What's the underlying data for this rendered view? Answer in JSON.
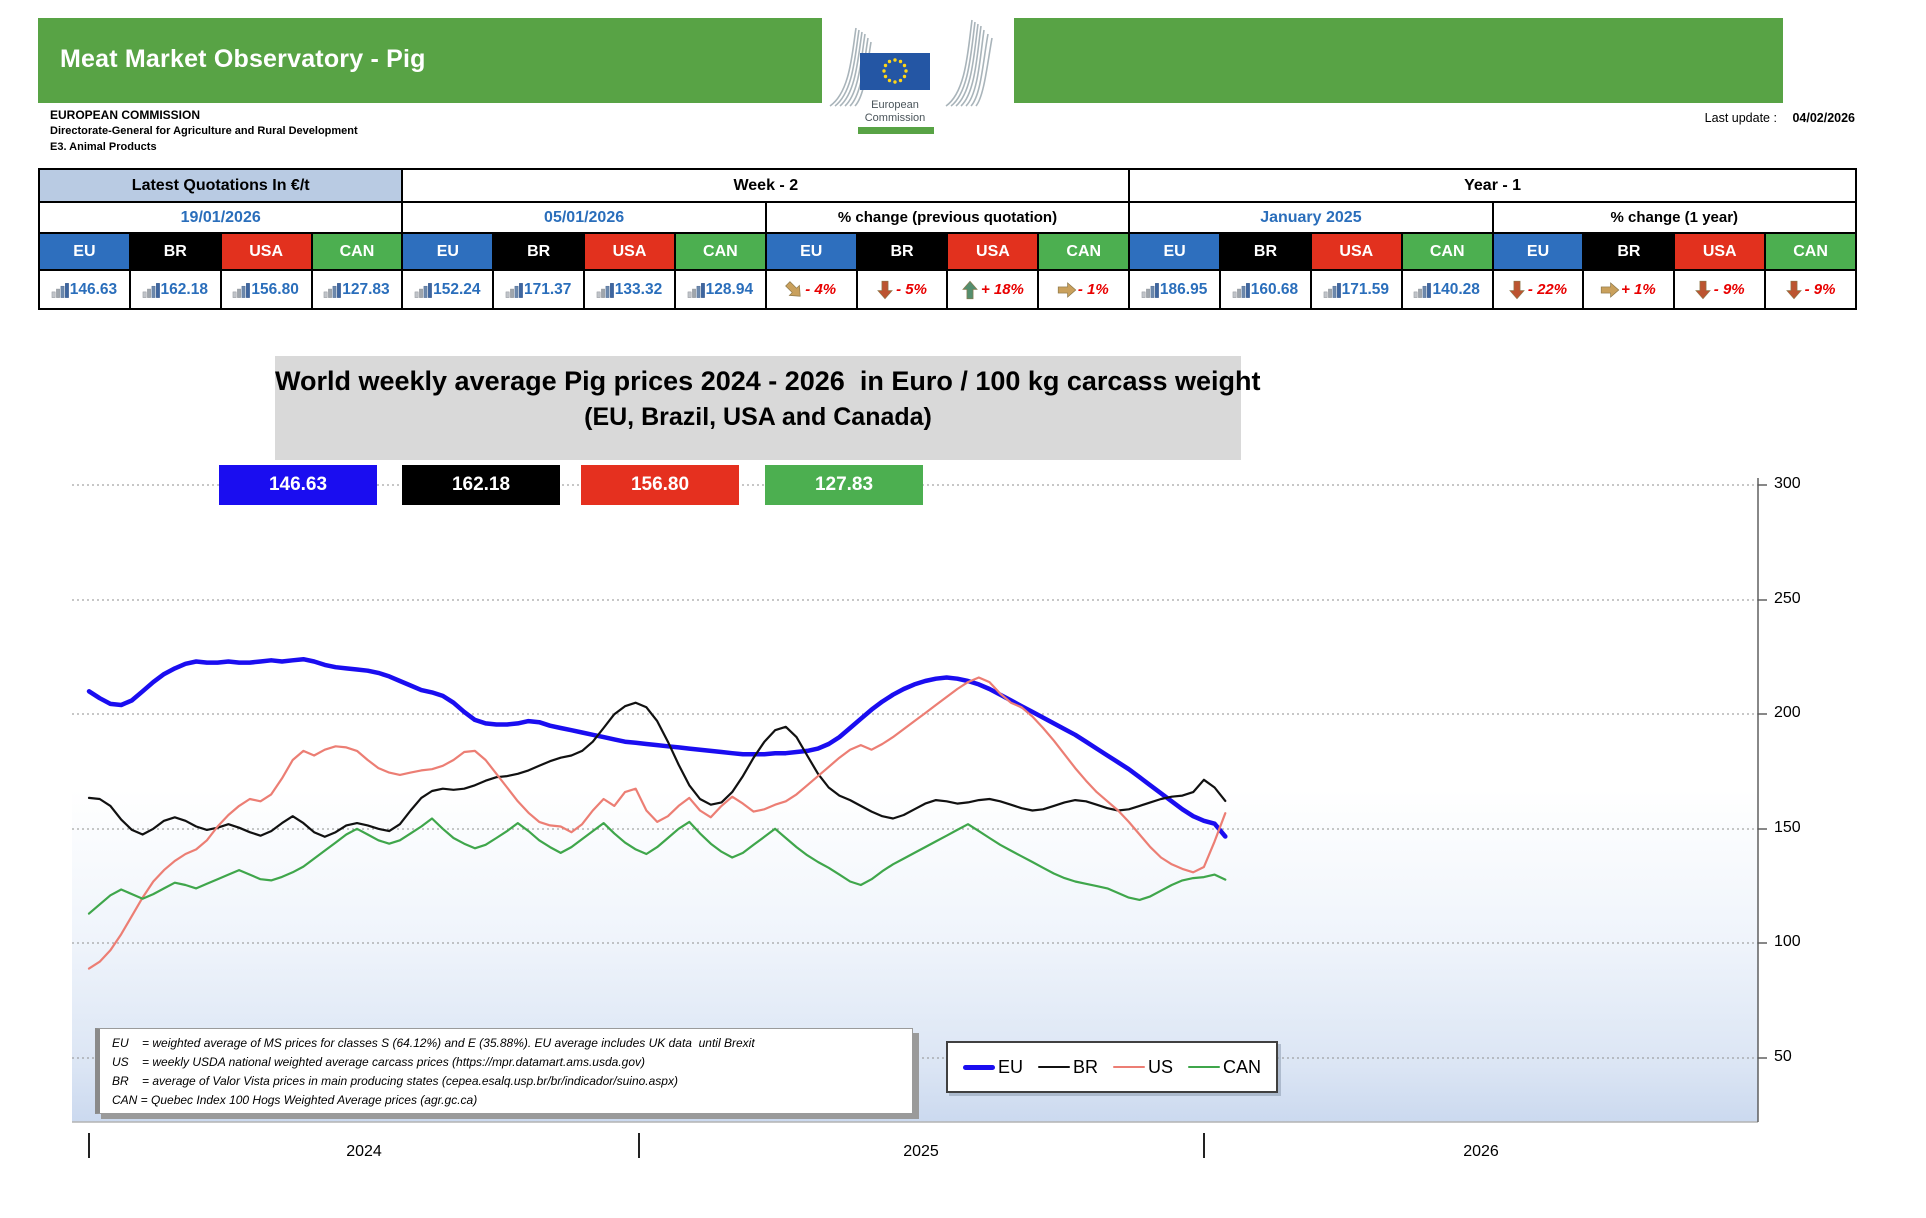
{
  "header": {
    "title": "Meat Market Observatory - Pig",
    "org_line1": "EUROPEAN COMMISSION",
    "org_line2": "Directorate-General for Agriculture and Rural Development",
    "org_line3": "E3. Animal Products",
    "last_update_label": "Last update :",
    "last_update_date": "04/02/2026",
    "logo_line1": "European",
    "logo_line2": "Commission"
  },
  "quotes_table": {
    "group1_label": "Latest Quotations In €/t",
    "group2_label": "Week - 2",
    "group3_label": "Year - 1",
    "date_latest": "19/01/2026",
    "date_week2": "05/01/2026",
    "pct_prev_label": "% change (previous quotation)",
    "date_year1": "January 2025",
    "pct_year_label": "% change (1 year)",
    "countries": [
      "EU",
      "BR",
      "USA",
      "CAN"
    ],
    "latest": [
      "146.63",
      "162.18",
      "156.80",
      "127.83"
    ],
    "week2": [
      "152.24",
      "171.37",
      "133.32",
      "128.94"
    ],
    "pct_prev": [
      {
        "arrow": "se",
        "value": "- 4%"
      },
      {
        "arrow": "down",
        "value": "- 5%"
      },
      {
        "arrow": "up",
        "value": "+ 18%"
      },
      {
        "arrow": "right",
        "value": "- 1%"
      }
    ],
    "year1": [
      "186.95",
      "160.68",
      "171.59",
      "140.28"
    ],
    "pct_year": [
      {
        "arrow": "down",
        "value": "- 22%"
      },
      {
        "arrow": "right",
        "value": "+ 1%"
      },
      {
        "arrow": "down",
        "value": "- 9%"
      },
      {
        "arrow": "down",
        "value": "- 9%"
      }
    ]
  },
  "chart": {
    "title_line1": "World weekly average Pig prices 2024 - 2026  in Euro / 100 kg carcass weight",
    "title_line2": "(EU, Brazil, USA and Canada)",
    "value_boxes": [
      {
        "value": "146.63",
        "color": "#1A0DF0"
      },
      {
        "value": "162.18",
        "color": "#000000"
      },
      {
        "value": "156.80",
        "color": "#E5301F"
      },
      {
        "value": "127.83",
        "color": "#4CAF50"
      }
    ],
    "footnotes": [
      "EU    = weighted average of MS prices for classes S (64.12%) and E (35.88%). EU average includes UK data  until Brexit",
      "US    = weekly USDA national weighted average carcass prices (https://mpr.datamart.ams.usda.gov)",
      "BR    = average of Valor Vista prices in main producing states (cepea.esalq.usp.br/br/indicador/suino.aspx)",
      "CAN = Quebec Index 100 Hogs Weighted Average prices (agr.gc.ca)"
    ]
  },
  "chart_data": {
    "type": "line",
    "title": "World weekly average Pig prices 2024 - 2026 in Euro / 100 kg carcass weight (EU, Brazil, USA and Canada)",
    "x_frequency": "weekly",
    "x_start": "2024-W01",
    "x_end": "2026-W03",
    "x_axis": {
      "tick_labels": [
        "2024",
        "2025",
        "2026"
      ]
    },
    "y_axis": {
      "ticks": [
        300,
        250,
        200,
        150,
        100,
        50
      ],
      "min": 50,
      "max": 300,
      "grid": "horizontal-dotted"
    },
    "legend": [
      "EU",
      "BR",
      "US",
      "CAN"
    ],
    "legend_position": "bottom",
    "series": [
      {
        "name": "EU",
        "color": "#1A0DF0",
        "width": 4.5,
        "values": [
          210,
          207,
          204.5,
          204,
          206,
          210,
          214,
          217.5,
          220,
          222,
          223,
          222.5,
          222.5,
          223,
          222.5,
          222.5,
          223,
          223.5,
          223,
          223.5,
          224,
          223,
          221.5,
          220.5,
          220,
          219.5,
          219,
          218,
          216.5,
          214.5,
          212.5,
          210.5,
          209.5,
          208,
          205,
          201,
          197.5,
          196,
          195.5,
          195.5,
          196,
          197,
          196.5,
          195,
          194,
          193,
          192,
          191,
          190,
          189,
          188,
          187.5,
          187,
          186.5,
          186,
          185.5,
          185,
          184.5,
          184,
          183.5,
          183,
          182.5,
          182.5,
          182.5,
          183,
          183,
          183.5,
          184,
          185,
          187,
          190,
          194,
          198,
          202,
          205.5,
          208.5,
          211,
          213,
          214.5,
          215.5,
          216,
          215.5,
          214.5,
          213,
          211,
          208.5,
          206,
          203.5,
          201,
          198.5,
          196,
          193.5,
          191,
          188,
          185,
          182,
          179,
          176,
          172.5,
          169,
          165.5,
          162,
          158.5,
          155.5,
          153.5,
          152.24,
          146.63
        ]
      },
      {
        "name": "BR",
        "color": "#111111",
        "width": 2.2,
        "values": [
          163.5,
          163,
          160,
          154,
          149.5,
          147.5,
          150,
          153.5,
          155,
          153.5,
          151,
          149.5,
          150.5,
          152,
          150.5,
          148.5,
          147,
          149,
          152.5,
          155.5,
          152.5,
          148.5,
          146.5,
          148.5,
          151.5,
          152.5,
          151.5,
          150,
          149,
          152,
          158,
          163.5,
          166.5,
          167.5,
          167,
          167.5,
          169,
          171,
          172.5,
          173,
          174,
          175.5,
          177.5,
          179.5,
          181,
          182,
          184,
          188,
          194,
          200,
          203.5,
          205,
          203,
          197,
          188,
          178,
          169,
          163,
          160.5,
          161.5,
          166,
          173,
          181,
          188,
          193,
          194.5,
          190,
          182,
          174,
          168,
          164.5,
          162.5,
          160,
          157.5,
          155.5,
          154.5,
          156,
          158.5,
          161,
          162.5,
          162,
          161,
          161.5,
          162.5,
          163,
          162,
          160.5,
          159,
          158,
          158.5,
          160,
          161.5,
          162.5,
          162,
          160.5,
          159,
          158,
          158.5,
          160,
          161.5,
          163,
          164,
          164.5,
          166,
          171.37,
          168,
          162.18
        ]
      },
      {
        "name": "US",
        "color": "#EC7E74",
        "width": 2.2,
        "values": [
          89,
          92,
          97,
          104,
          112,
          120,
          127,
          132,
          136,
          139,
          141,
          145,
          151,
          156,
          160,
          163,
          162,
          165,
          172,
          180,
          184,
          182,
          184.5,
          186,
          185.5,
          184,
          180,
          176.5,
          174.5,
          173.5,
          174.5,
          175.5,
          176,
          177.5,
          180,
          183.5,
          184,
          180,
          174,
          168,
          162,
          157,
          153,
          151.5,
          151,
          148.5,
          152,
          158,
          163,
          160,
          166,
          167.5,
          158,
          153,
          155.5,
          160,
          163.5,
          158,
          155,
          160,
          164,
          161,
          157.5,
          158.5,
          160.5,
          162,
          165,
          169,
          173,
          177,
          181,
          184.5,
          186.5,
          184.5,
          187,
          190,
          193.5,
          197,
          200.5,
          204,
          207.5,
          211,
          214,
          216,
          214,
          209,
          205,
          203,
          199,
          194,
          188.5,
          182.5,
          176.5,
          171,
          166,
          162,
          158,
          153,
          147.5,
          142,
          137.5,
          134.5,
          132.5,
          131,
          133.32,
          144.5,
          156.8
        ]
      },
      {
        "name": "CAN",
        "color": "#3FA64B",
        "width": 2.2,
        "values": [
          113,
          117,
          121,
          123.5,
          121.5,
          119.5,
          121.5,
          124,
          126.5,
          125.5,
          124,
          126,
          128,
          130,
          132,
          130,
          128,
          127.5,
          129,
          131,
          133.5,
          137,
          140.5,
          144,
          147.5,
          150,
          147.5,
          145,
          143.5,
          145,
          148,
          151,
          154.5,
          150,
          146,
          143.5,
          141.5,
          143,
          146,
          149,
          152.5,
          149,
          145,
          142,
          139.5,
          142,
          145.5,
          149,
          152.5,
          148,
          144,
          141,
          139,
          142,
          146,
          150,
          153,
          148,
          143.5,
          140,
          137.5,
          139.5,
          143,
          146.5,
          150,
          146,
          142,
          138.5,
          135.5,
          133,
          130,
          127,
          125.5,
          128,
          131.5,
          134.5,
          137,
          139.5,
          142,
          144.5,
          147,
          149.5,
          152,
          149,
          146,
          143,
          140.5,
          138,
          135.5,
          133,
          130.5,
          128.5,
          127,
          126,
          125,
          124,
          122,
          120,
          119,
          120.5,
          123,
          125.5,
          127.5,
          128.5,
          128.94,
          130,
          127.83
        ]
      }
    ]
  },
  "colors": {
    "banner_green": "#58A345",
    "eu_header": "#2E6FBE",
    "br_header": "#000000",
    "usa_header": "#E2311E",
    "can_header": "#4CAF50",
    "quote_header_bg": "#B9CBE3",
    "blue_text": "#2A6EBB",
    "pct_red": "#E80000",
    "arrow_gold": "#C9A05C",
    "arrow_rust": "#BC5430",
    "arrow_green": "#558E6E",
    "title_bg": "#D9D9D9",
    "plot_bottom_tint": "#CBD9EF"
  }
}
